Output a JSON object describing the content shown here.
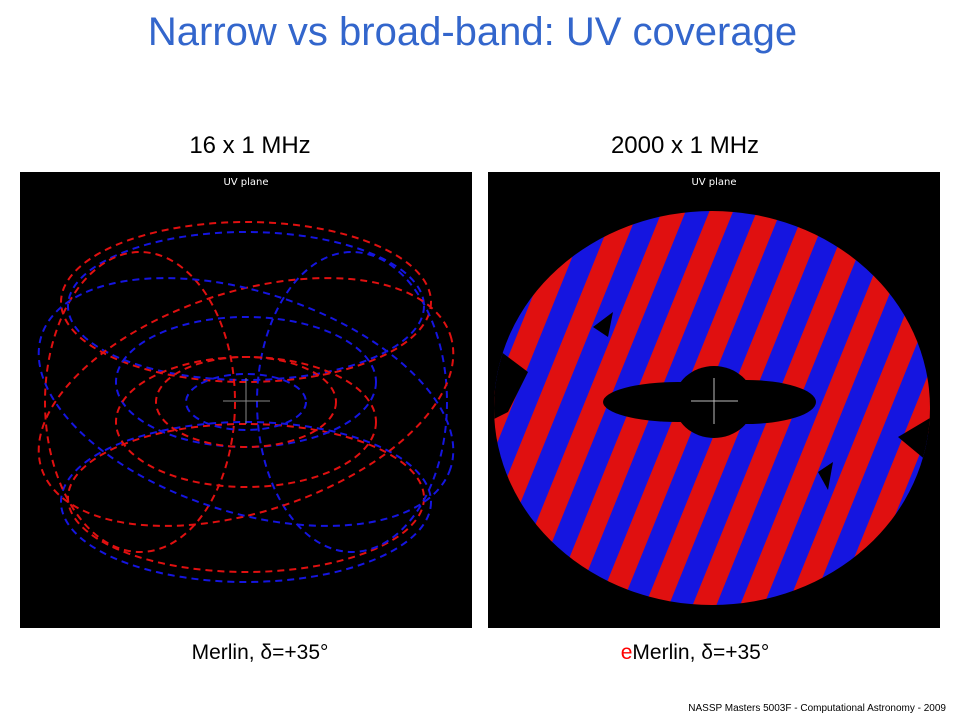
{
  "slide": {
    "title": "Narrow vs broad-band: UV coverage",
    "footer": "NASSP Masters 5003F - Computational Astronomy - 2009"
  },
  "panels": [
    {
      "heading": "16 x 1 MHz",
      "plot_label": "UV plane",
      "caption": "Merlin, δ=+35°"
    },
    {
      "heading": "2000 x 1 MHz",
      "plot_label": "UV plane",
      "caption_accent": "e",
      "caption_rest": "Merlin, δ=+35°"
    }
  ],
  "colors": {
    "title": "#3366cc",
    "fringe_red": "#e01010",
    "fringe_blue": "#1515e0",
    "accent": "#ff0000"
  }
}
